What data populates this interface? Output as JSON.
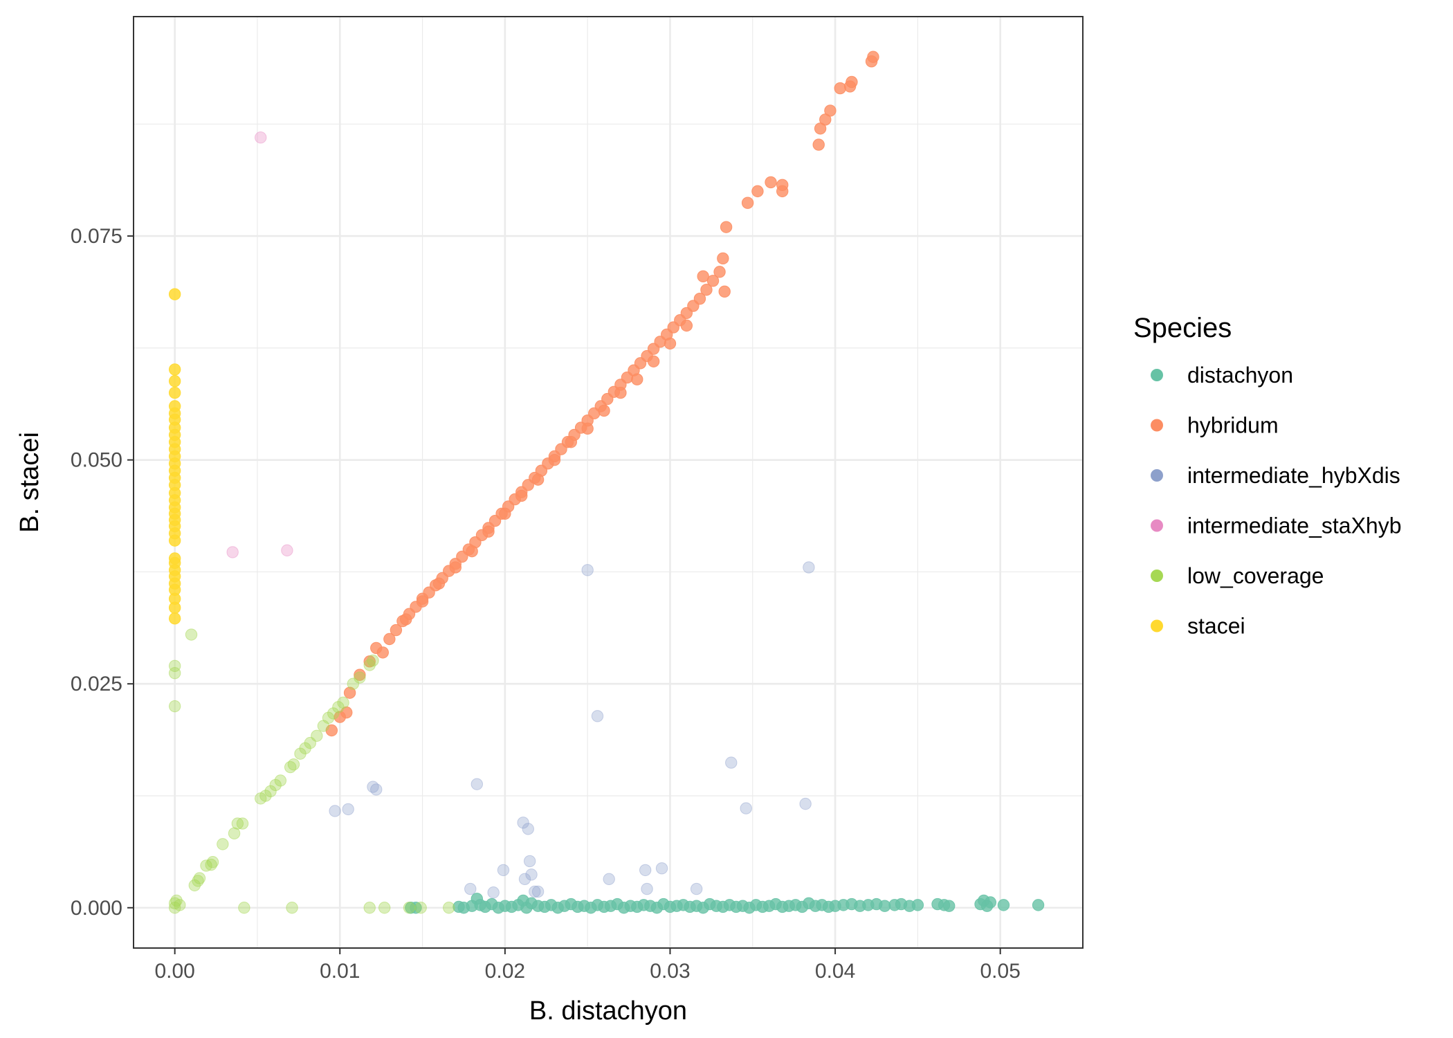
{
  "chart_data": {
    "type": "scatter",
    "title": "",
    "xlabel": "B. distachyon",
    "ylabel": "B. stacei",
    "xlim": [
      -0.0025,
      0.055
    ],
    "ylim": [
      -0.0045,
      0.0995
    ],
    "x_ticks": [
      0.0,
      0.01,
      0.02,
      0.03,
      0.04,
      0.05
    ],
    "x_tick_labels": [
      "0.00",
      "0.01",
      "0.02",
      "0.03",
      "0.04",
      "0.05"
    ],
    "y_ticks": [
      0.0,
      0.025,
      0.05,
      0.075
    ],
    "y_tick_labels": [
      "0.000",
      "0.025",
      "0.050",
      "0.075"
    ],
    "grid": true,
    "legend": {
      "title": "Species",
      "placement": "right",
      "entries": [
        "distachyon",
        "hybridum",
        "intermediate_hybXdis",
        "intermediate_staXhyb",
        "low_coverage",
        "stacei"
      ]
    },
    "series": [
      {
        "name": "distachyon",
        "color": "#66c2a5",
        "opacity": 0.8,
        "points": [
          [
            0.0143,
            0.0
          ],
          [
            0.0146,
            0.0
          ],
          [
            0.0172,
            0.0001
          ],
          [
            0.0175,
            0.0
          ],
          [
            0.018,
            0.0002
          ],
          [
            0.0183,
            0.001
          ],
          [
            0.0185,
            0.0003
          ],
          [
            0.0188,
            0.0001
          ],
          [
            0.0192,
            0.0004
          ],
          [
            0.0196,
            0.0
          ],
          [
            0.02,
            0.0002
          ],
          [
            0.0204,
            0.0001
          ],
          [
            0.0208,
            0.0003
          ],
          [
            0.0211,
            0.0008
          ],
          [
            0.0213,
            0.0
          ],
          [
            0.0216,
            0.0005
          ],
          [
            0.022,
            0.0002
          ],
          [
            0.0224,
            0.0001
          ],
          [
            0.0228,
            0.0003
          ],
          [
            0.0232,
            0.0
          ],
          [
            0.0236,
            0.0002
          ],
          [
            0.024,
            0.0004
          ],
          [
            0.0244,
            0.0001
          ],
          [
            0.0248,
            0.0002
          ],
          [
            0.0252,
            0.0
          ],
          [
            0.0256,
            0.0003
          ],
          [
            0.026,
            0.0001
          ],
          [
            0.0264,
            0.0002
          ],
          [
            0.0268,
            0.0004
          ],
          [
            0.0272,
            0.0
          ],
          [
            0.0276,
            0.0002
          ],
          [
            0.028,
            0.0001
          ],
          [
            0.0284,
            0.0003
          ],
          [
            0.0288,
            0.0002
          ],
          [
            0.0292,
            0.0
          ],
          [
            0.0296,
            0.0004
          ],
          [
            0.03,
            0.0001
          ],
          [
            0.0304,
            0.0002
          ],
          [
            0.0308,
            0.0003
          ],
          [
            0.0312,
            0.0001
          ],
          [
            0.0316,
            0.0002
          ],
          [
            0.032,
            0.0
          ],
          [
            0.0324,
            0.0004
          ],
          [
            0.0328,
            0.0002
          ],
          [
            0.0332,
            0.0001
          ],
          [
            0.0336,
            0.0003
          ],
          [
            0.034,
            0.0001
          ],
          [
            0.0344,
            0.0002
          ],
          [
            0.0348,
            0.0
          ],
          [
            0.0352,
            0.0003
          ],
          [
            0.0356,
            0.0001
          ],
          [
            0.036,
            0.0002
          ],
          [
            0.0364,
            0.0004
          ],
          [
            0.0368,
            0.0001
          ],
          [
            0.0372,
            0.0002
          ],
          [
            0.0376,
            0.0003
          ],
          [
            0.038,
            0.0001
          ],
          [
            0.0384,
            0.0005
          ],
          [
            0.0388,
            0.0002
          ],
          [
            0.0392,
            0.0003
          ],
          [
            0.0396,
            0.0001
          ],
          [
            0.04,
            0.0002
          ],
          [
            0.0405,
            0.0003
          ],
          [
            0.041,
            0.0004
          ],
          [
            0.0415,
            0.0002
          ],
          [
            0.042,
            0.0003
          ],
          [
            0.0425,
            0.0004
          ],
          [
            0.043,
            0.0002
          ],
          [
            0.0436,
            0.0003
          ],
          [
            0.044,
            0.0004
          ],
          [
            0.0445,
            0.0002
          ],
          [
            0.045,
            0.0003
          ],
          [
            0.0462,
            0.0004
          ],
          [
            0.0466,
            0.0003
          ],
          [
            0.0469,
            0.0002
          ],
          [
            0.0488,
            0.0004
          ],
          [
            0.049,
            0.0008
          ],
          [
            0.0492,
            0.0002
          ],
          [
            0.0494,
            0.0006
          ],
          [
            0.0502,
            0.0003
          ],
          [
            0.0523,
            0.0003
          ]
        ]
      },
      {
        "name": "hybridum",
        "color": "#fc8d62",
        "opacity": 0.8,
        "points": [
          [
            0.0095,
            0.0198
          ],
          [
            0.01,
            0.0213
          ],
          [
            0.0104,
            0.0218
          ],
          [
            0.0106,
            0.024
          ],
          [
            0.0112,
            0.026
          ],
          [
            0.0118,
            0.0275
          ],
          [
            0.0122,
            0.029
          ],
          [
            0.0126,
            0.0285
          ],
          [
            0.013,
            0.03
          ],
          [
            0.0134,
            0.031
          ],
          [
            0.0138,
            0.032
          ],
          [
            0.0142,
            0.0328
          ],
          [
            0.0146,
            0.0336
          ],
          [
            0.015,
            0.0345
          ],
          [
            0.0154,
            0.0352
          ],
          [
            0.0158,
            0.036
          ],
          [
            0.0162,
            0.0368
          ],
          [
            0.0166,
            0.0376
          ],
          [
            0.017,
            0.0384
          ],
          [
            0.0174,
            0.0392
          ],
          [
            0.0178,
            0.04
          ],
          [
            0.0182,
            0.0408
          ],
          [
            0.0186,
            0.0416
          ],
          [
            0.019,
            0.0424
          ],
          [
            0.0194,
            0.0432
          ],
          [
            0.0198,
            0.044
          ],
          [
            0.0202,
            0.0448
          ],
          [
            0.0206,
            0.0456
          ],
          [
            0.021,
            0.0464
          ],
          [
            0.0214,
            0.0472
          ],
          [
            0.0218,
            0.048
          ],
          [
            0.0222,
            0.0488
          ],
          [
            0.0226,
            0.0496
          ],
          [
            0.023,
            0.0504
          ],
          [
            0.0234,
            0.0512
          ],
          [
            0.0238,
            0.052
          ],
          [
            0.0242,
            0.0528
          ],
          [
            0.0246,
            0.0536
          ],
          [
            0.025,
            0.0544
          ],
          [
            0.0254,
            0.0552
          ],
          [
            0.0258,
            0.056
          ],
          [
            0.0262,
            0.0568
          ],
          [
            0.0266,
            0.0576
          ],
          [
            0.027,
            0.0584
          ],
          [
            0.0274,
            0.0592
          ],
          [
            0.0278,
            0.06
          ],
          [
            0.0282,
            0.0608
          ],
          [
            0.0286,
            0.0616
          ],
          [
            0.029,
            0.0624
          ],
          [
            0.0294,
            0.0632
          ],
          [
            0.0298,
            0.064
          ],
          [
            0.0302,
            0.0648
          ],
          [
            0.0306,
            0.0656
          ],
          [
            0.031,
            0.0664
          ],
          [
            0.0314,
            0.0672
          ],
          [
            0.0318,
            0.068
          ],
          [
            0.0322,
            0.069
          ],
          [
            0.0326,
            0.07
          ],
          [
            0.033,
            0.071
          ],
          [
            0.0332,
            0.0725
          ],
          [
            0.0334,
            0.076
          ],
          [
            0.0333,
            0.0688
          ],
          [
            0.032,
            0.0705
          ],
          [
            0.031,
            0.065
          ],
          [
            0.03,
            0.063
          ],
          [
            0.029,
            0.061
          ],
          [
            0.028,
            0.059
          ],
          [
            0.027,
            0.0575
          ],
          [
            0.026,
            0.0555
          ],
          [
            0.025,
            0.0535
          ],
          [
            0.024,
            0.052
          ],
          [
            0.023,
            0.05
          ],
          [
            0.022,
            0.0478
          ],
          [
            0.021,
            0.046
          ],
          [
            0.02,
            0.044
          ],
          [
            0.019,
            0.042
          ],
          [
            0.018,
            0.0398
          ],
          [
            0.017,
            0.038
          ],
          [
            0.016,
            0.0362
          ],
          [
            0.015,
            0.0342
          ],
          [
            0.014,
            0.0322
          ],
          [
            0.0347,
            0.0787
          ],
          [
            0.0353,
            0.08
          ],
          [
            0.0361,
            0.081
          ],
          [
            0.0368,
            0.08
          ],
          [
            0.0368,
            0.0807
          ],
          [
            0.039,
            0.0852
          ],
          [
            0.0391,
            0.087
          ],
          [
            0.0394,
            0.088
          ],
          [
            0.0397,
            0.089
          ],
          [
            0.0403,
            0.0915
          ],
          [
            0.0409,
            0.0917
          ],
          [
            0.041,
            0.0922
          ],
          [
            0.0422,
            0.0945
          ],
          [
            0.0423,
            0.095
          ]
        ]
      },
      {
        "name": "intermediate_hybXdis",
        "color": "#8da0cb",
        "opacity": 0.35,
        "points": [
          [
            0.0097,
            0.0108
          ],
          [
            0.0105,
            0.011
          ],
          [
            0.012,
            0.0135
          ],
          [
            0.0122,
            0.0132
          ],
          [
            0.0183,
            0.0138
          ],
          [
            0.0211,
            0.0095
          ],
          [
            0.0214,
            0.0088
          ],
          [
            0.0215,
            0.0052
          ],
          [
            0.0212,
            0.0032
          ],
          [
            0.0216,
            0.0037
          ],
          [
            0.0199,
            0.0042
          ],
          [
            0.0179,
            0.0021
          ],
          [
            0.0193,
            0.0017
          ],
          [
            0.0218,
            0.0018
          ],
          [
            0.022,
            0.0018
          ],
          [
            0.025,
            0.0377
          ],
          [
            0.0256,
            0.0214
          ],
          [
            0.0263,
            0.0032
          ],
          [
            0.0285,
            0.0042
          ],
          [
            0.0295,
            0.0044
          ],
          [
            0.0286,
            0.0021
          ],
          [
            0.0316,
            0.0021
          ],
          [
            0.0337,
            0.0162
          ],
          [
            0.0346,
            0.0111
          ],
          [
            0.0382,
            0.0116
          ],
          [
            0.0384,
            0.038
          ]
        ]
      },
      {
        "name": "intermediate_staXhyb",
        "color": "#e78ac3",
        "opacity": 0.35,
        "points": [
          [
            0.0052,
            0.086
          ],
          [
            0.0035,
            0.0397
          ],
          [
            0.0068,
            0.0399
          ]
        ]
      },
      {
        "name": "low_coverage",
        "color": "#a6d854",
        "opacity": 0.4,
        "points": [
          [
            0.0,
            0.0
          ],
          [
            0.0,
            0.0005
          ],
          [
            0.0001,
            0.0008
          ],
          [
            0.0003,
            0.0003
          ],
          [
            0.0,
            0.0225
          ],
          [
            0.0,
            0.0262
          ],
          [
            0.0,
            0.027
          ],
          [
            0.001,
            0.0305
          ],
          [
            0.0012,
            0.0025
          ],
          [
            0.0014,
            0.003
          ],
          [
            0.0015,
            0.0033
          ],
          [
            0.0019,
            0.0047
          ],
          [
            0.0022,
            0.0048
          ],
          [
            0.0023,
            0.0051
          ],
          [
            0.0029,
            0.0071
          ],
          [
            0.0036,
            0.0083
          ],
          [
            0.0038,
            0.0094
          ],
          [
            0.0041,
            0.0094
          ],
          [
            0.0042,
            0.0
          ],
          [
            0.0052,
            0.0122
          ],
          [
            0.0055,
            0.0125
          ],
          [
            0.0058,
            0.013
          ],
          [
            0.0061,
            0.0137
          ],
          [
            0.0064,
            0.0142
          ],
          [
            0.007,
            0.0157
          ],
          [
            0.0072,
            0.016
          ],
          [
            0.0076,
            0.0172
          ],
          [
            0.0079,
            0.0178
          ],
          [
            0.0082,
            0.0184
          ],
          [
            0.0086,
            0.0192
          ],
          [
            0.009,
            0.0203
          ],
          [
            0.0093,
            0.0212
          ],
          [
            0.0096,
            0.0217
          ],
          [
            0.0099,
            0.0224
          ],
          [
            0.0102,
            0.0229
          ],
          [
            0.0108,
            0.025
          ],
          [
            0.0112,
            0.0257
          ],
          [
            0.0118,
            0.0271
          ],
          [
            0.012,
            0.0276
          ],
          [
            0.0071,
            0.0
          ],
          [
            0.0118,
            0.0
          ],
          [
            0.0127,
            0.0
          ],
          [
            0.0142,
            0.0
          ],
          [
            0.0149,
            0.0
          ],
          [
            0.0166,
            0.0
          ]
        ]
      },
      {
        "name": "stacei",
        "color": "#ffd92f",
        "opacity": 0.85,
        "points": [
          [
            0.0,
            0.0323
          ],
          [
            0.0,
            0.0335
          ],
          [
            0.0,
            0.0345
          ],
          [
            0.0,
            0.0355
          ],
          [
            0.0,
            0.0362
          ],
          [
            0.0,
            0.037
          ],
          [
            0.0,
            0.0377
          ],
          [
            0.0,
            0.0385
          ],
          [
            0.0,
            0.039
          ],
          [
            0.0,
            0.041
          ],
          [
            0.0,
            0.0418
          ],
          [
            0.0,
            0.0426
          ],
          [
            0.0,
            0.0433
          ],
          [
            0.0,
            0.044
          ],
          [
            0.0,
            0.0447
          ],
          [
            0.0,
            0.0455
          ],
          [
            0.0,
            0.0463
          ],
          [
            0.0,
            0.0472
          ],
          [
            0.0,
            0.048
          ],
          [
            0.0,
            0.0488
          ],
          [
            0.0,
            0.0496
          ],
          [
            0.0,
            0.0504
          ],
          [
            0.0,
            0.0512
          ],
          [
            0.0,
            0.052
          ],
          [
            0.0,
            0.0528
          ],
          [
            0.0,
            0.0536
          ],
          [
            0.0,
            0.0545
          ],
          [
            0.0,
            0.0552
          ],
          [
            0.0,
            0.056
          ],
          [
            0.0,
            0.0575
          ],
          [
            0.0,
            0.0588
          ],
          [
            0.0,
            0.0601
          ],
          [
            0.0,
            0.0685
          ]
        ]
      }
    ]
  }
}
